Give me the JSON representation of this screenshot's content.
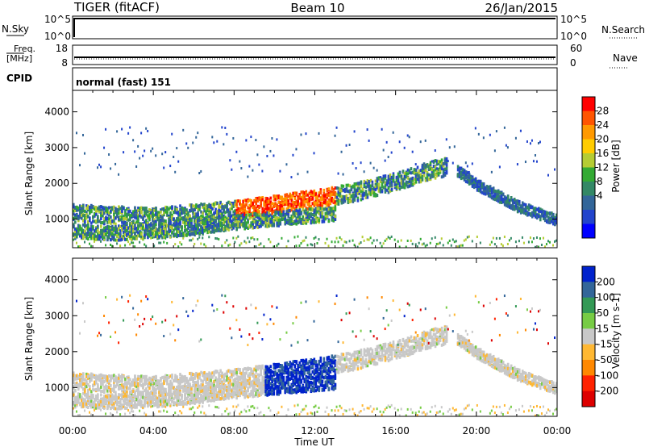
{
  "header": {
    "radar": "TIGER (fitACF)",
    "beam": "Beam 10",
    "date": "26/Jan/2015"
  },
  "status_panels": {
    "nsky": {
      "label": "N.Sky",
      "ticks": [
        "10^5",
        "10^0"
      ]
    },
    "nsearch": {
      "label": "N.Search",
      "ticks": [
        "10^5",
        "10^0"
      ]
    },
    "freq": {
      "label_top": "Freq.",
      "label_unit": "[MHz]",
      "ticks": [
        "18",
        "8"
      ]
    },
    "nave": {
      "label": "Nave",
      "ticks": [
        "60",
        "0"
      ]
    },
    "cpid": {
      "label": "CPID",
      "value": "normal (fast) 151"
    }
  },
  "chart_data": [
    {
      "type": "heatmap",
      "name": "power",
      "ylabel": "Slant Range [km]",
      "xlabel": "",
      "ylim": [
        200,
        4600
      ],
      "x_ticks": [
        "00:00",
        "04:00",
        "08:00",
        "12:00",
        "16:00",
        "20:00",
        "00:00"
      ],
      "y_ticks": [
        1000,
        2000,
        3000,
        4000
      ],
      "colorbar": {
        "label": "Power [dB]",
        "ticks": [
          "28",
          "24",
          "20",
          "16",
          "12",
          "8",
          "4"
        ],
        "colors": [
          "#ff0000",
          "#ff5500",
          "#ff9900",
          "#ffcc00",
          "#b5cc33",
          "#33aa33",
          "#338866",
          "#336699",
          "#2244cc",
          "#0000ff"
        ]
      },
      "features": [
        {
          "desc": "main band",
          "points": [
            [
              0,
              1200
            ],
            [
              2,
              1150
            ],
            [
              4,
              1100
            ],
            [
              6,
              1200
            ],
            [
              8,
              1300
            ],
            [
              10,
              1450
            ],
            [
              12,
              1600
            ],
            [
              14,
              1800
            ],
            [
              16,
              2100
            ],
            [
              18,
              2450
            ],
            [
              18.5,
              2500
            ]
          ],
          "width": 250,
          "power": 12
        },
        {
          "desc": "lower band",
          "points": [
            [
              0,
              700
            ],
            [
              2,
              650
            ],
            [
              4,
              700
            ],
            [
              6,
              800
            ],
            [
              8,
              950
            ],
            [
              10,
              1050
            ],
            [
              12,
              1150
            ],
            [
              13,
              1200
            ]
          ],
          "width": 200,
          "power": 8
        },
        {
          "desc": "dusk bands",
          "points": [
            [
              19,
              2400
            ],
            [
              20,
              2000
            ],
            [
              21,
              1700
            ],
            [
              22,
              1400
            ],
            [
              23,
              1200
            ],
            [
              24,
              1000
            ]
          ],
          "width": 150,
          "power": 8
        }
      ]
    },
    {
      "type": "heatmap",
      "name": "velocity",
      "ylabel": "Slant Range [km]",
      "xlabel": "Time UT",
      "ylim": [
        200,
        4600
      ],
      "x_ticks": [
        "00:00",
        "04:00",
        "08:00",
        "12:00",
        "16:00",
        "20:00",
        "00:00"
      ],
      "y_ticks": [
        1000,
        2000,
        3000,
        4000
      ],
      "colorbar": {
        "label": "Velocity [m s-1]",
        "ticks": [
          "200",
          "100",
          "50",
          "15",
          "-15",
          "-50",
          "-100",
          "-200"
        ],
        "colors": [
          "#0022cc",
          "#336699",
          "#339955",
          "#77cc44",
          "#c8c8c8",
          "#ffb833",
          "#ff8800",
          "#ff2200",
          "#dd0000"
        ]
      }
    }
  ]
}
